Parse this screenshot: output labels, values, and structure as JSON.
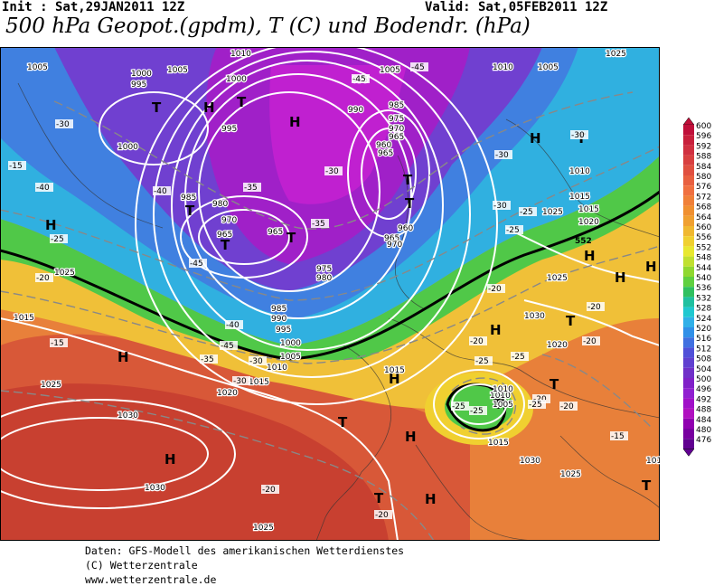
{
  "header": {
    "init": "Init : Sat,29JAN2011 12Z",
    "valid": "Valid: Sat,05FEB2011 12Z",
    "title": "500 hPa Geopot.(gpdm), T (C) und Bodendr. (hPa)"
  },
  "footer": {
    "line1": "Daten: GFS-Modell des amerikanischen Wetterdienstes",
    "line2": "(C) Wetterzentrale",
    "line3": "www.wetterzentrale.de"
  },
  "legend": {
    "values": [
      "600",
      "596",
      "592",
      "588",
      "584",
      "580",
      "576",
      "572",
      "568",
      "564",
      "560",
      "556",
      "552",
      "548",
      "544",
      "540",
      "536",
      "532",
      "528",
      "524",
      "520",
      "516",
      "512",
      "508",
      "504",
      "500",
      "496",
      "492",
      "488",
      "484",
      "480",
      "476"
    ],
    "colors": [
      "#c0103a",
      "#c8203c",
      "#d03040",
      "#d84040",
      "#e05040",
      "#e86040",
      "#f07040",
      "#f08038",
      "#f09030",
      "#f0a030",
      "#f0b830",
      "#f0d030",
      "#e8e830",
      "#c0e030",
      "#90d830",
      "#60d040",
      "#30c060",
      "#20c0a0",
      "#20c8d0",
      "#30b0e8",
      "#3090e8",
      "#4070e0",
      "#5050d8",
      "#6040d0",
      "#7030c8",
      "#8020c8",
      "#9020d0",
      "#a010c8",
      "#b010c0",
      "#9000b0",
      "#7800a0",
      "#600090"
    ]
  },
  "map": {
    "pressure_labels": [
      "1005",
      "1000",
      "995",
      "1005",
      "1010",
      "1000",
      "1005",
      "1010",
      "1005",
      "1025",
      "995",
      "1000",
      "985",
      "980",
      "970",
      "965",
      "965",
      "975",
      "990",
      "985",
      "975",
      "970",
      "965",
      "960",
      "965",
      "960",
      "965",
      "970",
      "975",
      "980",
      "985",
      "990",
      "995",
      "1000",
      "1005",
      "1010",
      "1015",
      "1020",
      "1025",
      "1030",
      "1030",
      "1025",
      "1025",
      "1010",
      "1015",
      "1015",
      "1020",
      "1025",
      "1030",
      "1015",
      "1010",
      "1005",
      "1015",
      "1020",
      "1030",
      "1025",
      "1010",
      "1015",
      "1025",
      "1010"
    ],
    "temp_labels": [
      "-45",
      "-45",
      "-45",
      "-40",
      "-35",
      "-30",
      "-30",
      "-30",
      "-30",
      "-35",
      "-40",
      "-40",
      "-45",
      "-35",
      "-30",
      "-30",
      "-25",
      "-25",
      "-25",
      "-20",
      "-20",
      "-20",
      "-15",
      "-15",
      "-20",
      "-25",
      "-25",
      "-30",
      "-20",
      "-20",
      "-25",
      "-25",
      "-15",
      "-20",
      "-25",
      "-20",
      "-20"
    ],
    "highs_label": "H",
    "lows_label": "T",
    "contour_558_label": "552"
  }
}
